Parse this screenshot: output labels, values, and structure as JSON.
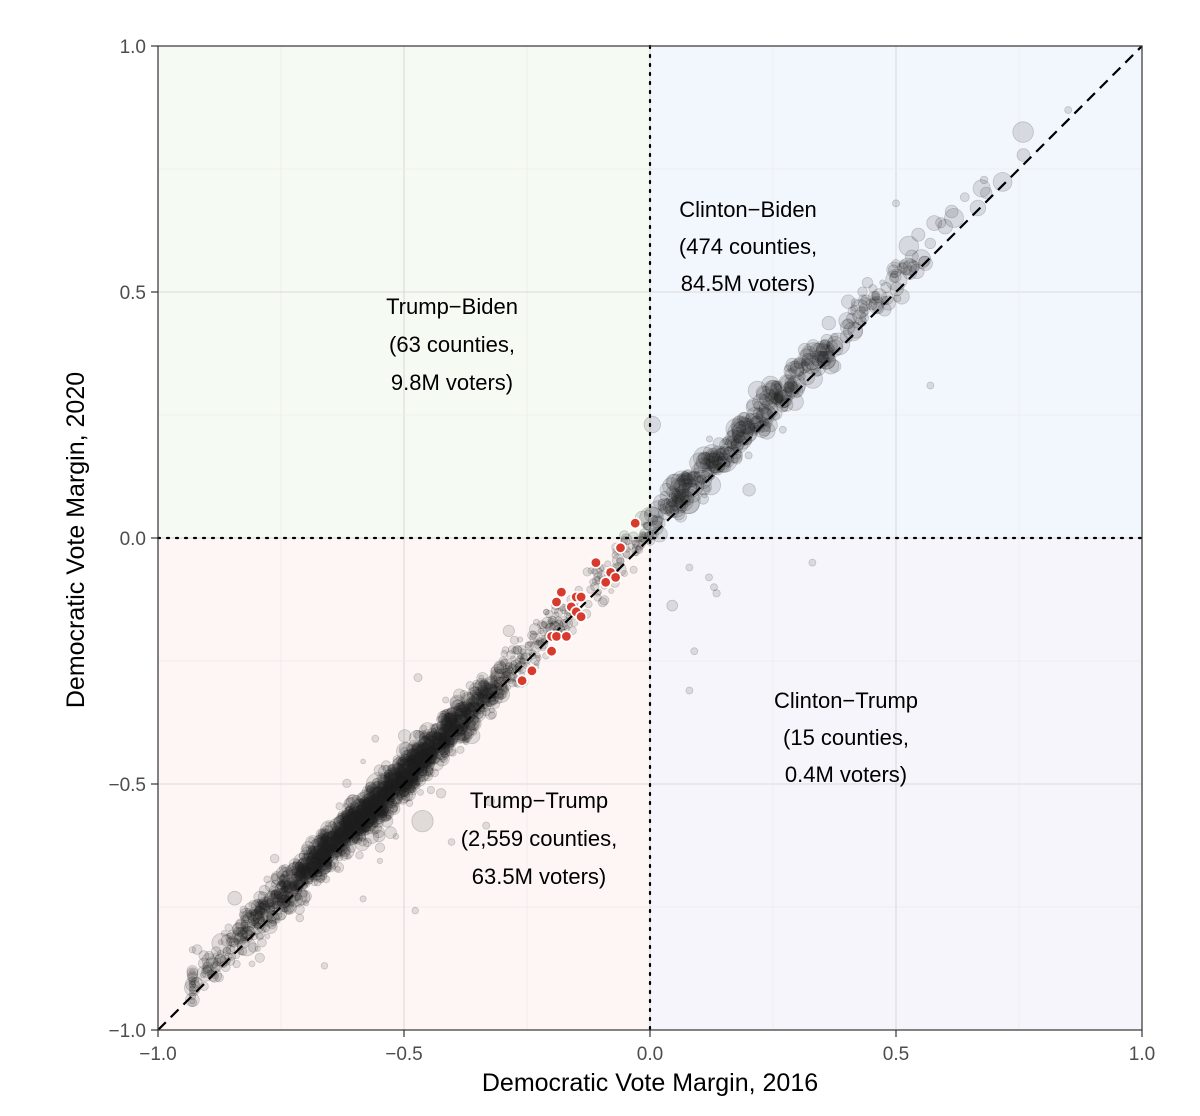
{
  "chart_data": {
    "type": "scatter",
    "title": "",
    "xlabel": "Democratic Vote Margin, 2016",
    "ylabel": "Democratic Vote Margin, 2020",
    "xlim": [
      -1.0,
      1.0
    ],
    "ylim": [
      -1.0,
      1.0
    ],
    "x_ticks": [
      -1.0,
      -0.5,
      0.0,
      0.5,
      1.0
    ],
    "y_ticks": [
      -1.0,
      -0.5,
      0.0,
      0.5,
      1.0
    ],
    "x_tick_labels": [
      "−1.0",
      "−0.5",
      "0.0",
      "0.5",
      "1.0"
    ],
    "y_tick_labels": [
      "−1.0",
      "−0.5",
      "0.0",
      "0.5",
      "1.0"
    ],
    "grid": true,
    "reference_lines": [
      {
        "type": "diagonal",
        "slope": 1,
        "intercept": 0,
        "style": "dashed"
      },
      {
        "type": "vertical",
        "x": 0,
        "style": "dotted"
      },
      {
        "type": "horizontal",
        "y": 0,
        "style": "dotted"
      }
    ],
    "quadrants": [
      {
        "name": "Trump−Biden",
        "counties": "(63 counties,",
        "voters": "9.8M voters)",
        "color": "#e9f7e4"
      },
      {
        "name": "Clinton−Biden",
        "counties": "(474 counties,",
        "voters": "84.5M voters)",
        "color": "#e3eafb"
      },
      {
        "name": "Trump−Trump",
        "counties": "(2,559 counties,",
        "voters": "63.5M voters)",
        "color": "#fbece8"
      },
      {
        "name": "Clinton−Trump",
        "counties": "(15 counties,",
        "voters": "0.4M voters)",
        "color": "#ebe9f8"
      }
    ],
    "highlight_color": "#d83a2e",
    "highlighted_points": [
      {
        "x": -0.03,
        "y": 0.03
      },
      {
        "x": -0.06,
        "y": -0.02
      },
      {
        "x": -0.11,
        "y": -0.05
      },
      {
        "x": -0.08,
        "y": -0.07
      },
      {
        "x": -0.07,
        "y": -0.08
      },
      {
        "x": -0.09,
        "y": -0.09
      },
      {
        "x": -0.18,
        "y": -0.11
      },
      {
        "x": -0.15,
        "y": -0.12
      },
      {
        "x": -0.14,
        "y": -0.12
      },
      {
        "x": -0.19,
        "y": -0.13
      },
      {
        "x": -0.16,
        "y": -0.14
      },
      {
        "x": -0.15,
        "y": -0.15
      },
      {
        "x": -0.14,
        "y": -0.16
      },
      {
        "x": -0.2,
        "y": -0.2
      },
      {
        "x": -0.19,
        "y": -0.2
      },
      {
        "x": -0.17,
        "y": -0.2
      },
      {
        "x": -0.2,
        "y": -0.23
      },
      {
        "x": -0.24,
        "y": -0.27
      },
      {
        "x": -0.26,
        "y": -0.29
      }
    ],
    "approx_total_points": 3111
  }
}
